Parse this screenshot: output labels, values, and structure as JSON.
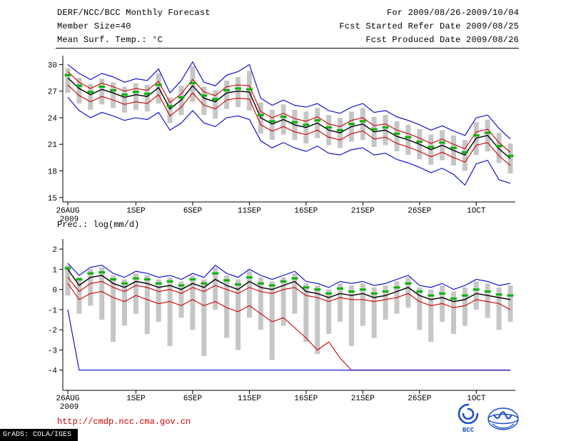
{
  "header": {
    "title": "DERF/NCC/BCC Monthly Forecast",
    "member_size": "Member Size=40",
    "variable_label": "Mean Surf. Temp.: °C",
    "period": "For 2009/08/26-2009/10/04",
    "refer_date": "Fcst Started Refer Date 2009/08/25",
    "produced_date": "Fcst Produced Date 2009/08/26"
  },
  "footer": {
    "url": "http://cmdp.ncc.cma.gov.cn",
    "stamp": "GrADS: COLA/IGES",
    "logos": [
      {
        "name": "bcc-logo",
        "label": "BCC"
      },
      {
        "name": "cma-logo",
        "label": ""
      }
    ]
  },
  "colors": {
    "line_blue": "#0000cc",
    "line_red": "#cc0000",
    "line_black": "#000000",
    "marker_green": "#00b400",
    "bar_gray": "#c6c6c6",
    "url_red": "#cc0000",
    "logo_blue": "#1d50c8"
  },
  "chart_data": [
    {
      "type": "line",
      "title": "Mean Surf. Temp.: °C",
      "n_points": 40,
      "x_tick_labels": [
        "26AUG",
        "1SEP",
        "6SEP",
        "11SEP",
        "16SEP",
        "21SEP",
        "26SEP",
        "1OCT"
      ],
      "x_tick_positions": [
        0,
        6,
        11,
        16,
        21,
        26,
        31,
        36
      ],
      "x_sub_label": "2009",
      "ylim": [
        14.5,
        31
      ],
      "yticks": [
        30,
        27,
        24,
        21,
        18,
        15
      ],
      "series": [
        {
          "name": "ensemble-max",
          "color": "#0000cc",
          "values": [
            30.0,
            29.0,
            28.3,
            29.0,
            28.6,
            28.0,
            28.4,
            28.2,
            29.5,
            26.8,
            28.2,
            30.3,
            28.0,
            27.6,
            28.8,
            29.2,
            30.0,
            26.2,
            25.4,
            26.0,
            25.4,
            25.2,
            25.6,
            24.8,
            24.5,
            25.2,
            25.6,
            24.6,
            24.8,
            24.1,
            23.7,
            23.2,
            22.6,
            23.1,
            22.5,
            22.0,
            24.0,
            24.3,
            22.8,
            21.6
          ]
        },
        {
          "name": "upper-tercile",
          "color": "#cc0000",
          "values": [
            29.2,
            28.0,
            27.3,
            27.9,
            27.5,
            27.0,
            27.3,
            27.1,
            28.1,
            25.7,
            26.7,
            28.3,
            26.9,
            26.5,
            27.5,
            27.7,
            27.6,
            24.7,
            24.0,
            24.5,
            23.9,
            23.6,
            24.1,
            23.3,
            23.0,
            23.7,
            24.0,
            23.1,
            23.3,
            22.6,
            22.2,
            21.7,
            21.1,
            21.6,
            21.0,
            20.5,
            22.4,
            22.7,
            21.2,
            20.1
          ]
        },
        {
          "name": "ensemble-mean",
          "color": "#000000",
          "values": [
            28.5,
            27.3,
            26.6,
            27.2,
            26.8,
            26.3,
            26.6,
            26.4,
            27.4,
            25.0,
            26.0,
            27.6,
            26.2,
            25.8,
            26.8,
            27.0,
            26.9,
            24.0,
            23.3,
            23.8,
            23.2,
            22.9,
            23.4,
            22.6,
            22.3,
            23.0,
            23.3,
            22.4,
            22.6,
            21.9,
            21.5,
            21.0,
            20.4,
            20.9,
            20.3,
            19.8,
            21.7,
            22.0,
            20.5,
            19.4
          ]
        },
        {
          "name": "lower-tercile",
          "color": "#cc0000",
          "values": [
            27.7,
            26.5,
            25.8,
            26.4,
            26.0,
            25.5,
            25.8,
            25.6,
            26.6,
            24.2,
            25.2,
            26.8,
            25.4,
            25.0,
            26.0,
            26.2,
            26.1,
            23.2,
            22.5,
            23.0,
            22.4,
            22.1,
            22.6,
            21.8,
            21.5,
            22.2,
            22.5,
            21.6,
            21.8,
            21.1,
            20.7,
            20.2,
            19.6,
            20.1,
            19.5,
            19.0,
            20.9,
            21.2,
            19.7,
            18.6
          ]
        },
        {
          "name": "ensemble-min",
          "color": "#0000cc",
          "values": [
            26.3,
            24.8,
            24.0,
            24.6,
            24.2,
            23.7,
            24.0,
            23.8,
            24.6,
            22.6,
            23.4,
            24.8,
            23.4,
            23.0,
            24.0,
            24.2,
            23.8,
            21.4,
            20.6,
            21.2,
            20.6,
            20.2,
            20.8,
            20.0,
            19.8,
            20.4,
            20.6,
            19.8,
            20.0,
            19.3,
            18.9,
            18.4,
            17.8,
            18.3,
            17.6,
            16.4,
            18.8,
            19.2,
            17.0,
            16.6
          ]
        }
      ],
      "bars": {
        "name": "member-spread",
        "color": "#c6c6c6",
        "top": [
          29.6,
          28.5,
          27.8,
          28.4,
          28.0,
          27.5,
          27.9,
          27.7,
          29.0,
          26.3,
          27.6,
          29.8,
          27.5,
          27.1,
          28.2,
          28.6,
          29.3,
          25.7,
          24.9,
          25.5,
          24.9,
          24.7,
          25.1,
          24.3,
          24.0,
          24.7,
          25.1,
          24.1,
          24.3,
          23.6,
          23.2,
          22.7,
          22.1,
          22.6,
          22.0,
          21.5,
          23.5,
          23.8,
          22.3,
          21.1
        ],
        "bottom": [
          26.8,
          25.6,
          24.9,
          25.5,
          25.1,
          24.6,
          24.9,
          24.7,
          25.6,
          23.4,
          24.3,
          25.8,
          24.3,
          23.9,
          25.0,
          25.2,
          24.8,
          22.2,
          21.5,
          22.1,
          21.5,
          21.1,
          21.7,
          20.9,
          20.6,
          21.3,
          21.5,
          20.7,
          20.9,
          20.2,
          19.8,
          19.3,
          18.7,
          19.2,
          18.6,
          18.0,
          19.8,
          20.2,
          18.9,
          17.7
        ]
      },
      "markers": {
        "name": "climatology",
        "color": "#00b400",
        "values": [
          28.8,
          27.6,
          26.9,
          27.5,
          27.1,
          26.6,
          26.9,
          26.7,
          27.7,
          25.3,
          26.3,
          27.9,
          26.5,
          26.1,
          27.1,
          27.3,
          27.2,
          24.3,
          23.6,
          24.1,
          23.5,
          23.2,
          23.7,
          22.9,
          22.6,
          23.3,
          23.6,
          22.7,
          22.9,
          22.2,
          21.8,
          21.3,
          20.7,
          21.2,
          20.6,
          20.1,
          22.0,
          22.3,
          20.8,
          19.7
        ]
      }
    },
    {
      "type": "line",
      "title": "Prec.: log(mm/d)",
      "n_points": 40,
      "x_tick_labels": [
        "26AUG",
        "1SEP",
        "6SEP",
        "11SEP",
        "16SEP",
        "21SEP",
        "26SEP",
        "1OCT"
      ],
      "x_tick_positions": [
        0,
        6,
        11,
        16,
        21,
        26,
        31,
        36
      ],
      "x_sub_label": "2009",
      "ylim": [
        -5,
        2.5
      ],
      "yticks": [
        2,
        1,
        0,
        -1,
        -2,
        -3,
        -4
      ],
      "series": [
        {
          "name": "ensemble-max",
          "color": "#0000cc",
          "values": [
            1.3,
            0.7,
            1.1,
            1.2,
            0.8,
            0.6,
            0.9,
            0.8,
            0.6,
            0.7,
            0.5,
            0.8,
            0.6,
            1.2,
            0.8,
            0.6,
            1.0,
            0.7,
            0.5,
            0.7,
            0.9,
            0.4,
            0.3,
            0.1,
            0.4,
            0.3,
            0.4,
            0.2,
            0.3,
            0.5,
            0.7,
            0.2,
            0.1,
            0.3,
            0.0,
            0.2,
            0.5,
            0.4,
            0.2,
            0.3
          ]
        },
        {
          "name": "upper-tercile",
          "color": "#cc0000",
          "values": [
            0.6,
            -0.1,
            0.3,
            0.4,
            0.1,
            -0.1,
            0.2,
            0.1,
            -0.1,
            0.0,
            -0.2,
            0.1,
            -0.1,
            0.2,
            0.0,
            -0.2,
            0.1,
            -0.1,
            -0.2,
            0.0,
            0.1,
            -0.3,
            -0.4,
            -0.6,
            -0.4,
            -0.5,
            -0.5,
            -0.6,
            -0.5,
            -0.4,
            -0.2,
            -0.6,
            -0.8,
            -0.7,
            -0.9,
            -0.8,
            -0.5,
            -0.6,
            -0.7,
            -1.0
          ]
        },
        {
          "name": "ensemble-mean",
          "color": "#000000",
          "values": [
            1.0,
            0.2,
            0.6,
            0.7,
            0.3,
            0.1,
            0.4,
            0.3,
            0.1,
            0.2,
            0.0,
            0.3,
            0.1,
            0.5,
            0.2,
            0.0,
            0.4,
            0.1,
            0.0,
            0.2,
            0.4,
            -0.1,
            -0.2,
            -0.4,
            -0.2,
            -0.3,
            -0.2,
            -0.4,
            -0.3,
            -0.1,
            0.1,
            -0.3,
            -0.5,
            -0.4,
            -0.6,
            -0.5,
            -0.2,
            -0.3,
            -0.4,
            -0.5
          ]
        },
        {
          "name": "lower-tercile",
          "color": "#cc0000",
          "values": [
            0.3,
            -0.5,
            -0.2,
            -0.1,
            -0.4,
            -0.6,
            -0.3,
            -0.5,
            -0.7,
            -0.6,
            -0.8,
            -0.5,
            -0.8,
            -0.6,
            -0.9,
            -1.1,
            -0.8,
            -1.2,
            -1.6,
            -1.4,
            -1.9,
            -2.4,
            -3.0,
            -2.6,
            -3.4,
            -4.0,
            -4.0,
            -4.0,
            -4.0,
            -4.0,
            -4.0,
            -4.0,
            -4.0,
            -4.0,
            -4.0,
            -4.0,
            -4.0,
            -4.0,
            -4.0,
            -4.0
          ]
        },
        {
          "name": "ensemble-min",
          "color": "#0000cc",
          "values": [
            -1.0,
            -4.0,
            -4.0,
            -4.0,
            -4.0,
            -4.0,
            -4.0,
            -4.0,
            -4.0,
            -4.0,
            -4.0,
            -4.0,
            -4.0,
            -4.0,
            -4.0,
            -4.0,
            -4.0,
            -4.0,
            -4.0,
            -4.0,
            -4.0,
            -4.0,
            -4.0,
            -4.0,
            -4.0,
            -4.0,
            -4.0,
            -4.0,
            -4.0,
            -4.0,
            -4.0,
            -4.0,
            -4.0,
            -4.0,
            -4.0,
            -4.0,
            -4.0,
            -4.0,
            -4.0,
            -4.0
          ]
        }
      ],
      "bars": {
        "name": "member-spread",
        "color": "#c6c6c6",
        "top": [
          1.2,
          0.6,
          1.0,
          1.1,
          0.7,
          0.5,
          0.8,
          0.7,
          0.5,
          0.6,
          0.4,
          0.7,
          0.5,
          1.1,
          0.7,
          0.5,
          0.9,
          0.6,
          0.4,
          0.6,
          0.8,
          0.3,
          0.2,
          0.0,
          0.3,
          0.2,
          0.3,
          0.1,
          0.2,
          0.4,
          0.6,
          0.1,
          0.0,
          0.2,
          -0.1,
          0.1,
          0.4,
          0.3,
          0.1,
          0.2
        ],
        "bottom": [
          -0.3,
          -1.2,
          -0.8,
          -1.5,
          -2.6,
          -1.8,
          -1.2,
          -2.2,
          -1.6,
          -2.8,
          -1.4,
          -2.0,
          -3.3,
          -1.0,
          -2.4,
          -3.0,
          -1.4,
          -2.0,
          -3.5,
          -1.8,
          -1.2,
          -2.6,
          -3.2,
          -2.2,
          -1.6,
          -2.8,
          -1.8,
          -2.4,
          -1.5,
          -1.2,
          -0.9,
          -2.0,
          -2.6,
          -1.6,
          -2.2,
          -1.8,
          -1.0,
          -1.4,
          -2.0,
          -1.6
        ]
      },
      "markers": {
        "name": "climatology",
        "color": "#00b400",
        "values": [
          1.05,
          0.5,
          0.8,
          0.85,
          0.5,
          0.3,
          0.55,
          0.5,
          0.3,
          0.4,
          0.2,
          0.5,
          0.3,
          0.8,
          0.45,
          0.25,
          0.6,
          0.3,
          0.2,
          0.4,
          0.55,
          0.1,
          0.0,
          -0.2,
          0.05,
          -0.1,
          0.0,
          -0.2,
          -0.1,
          0.1,
          0.3,
          -0.1,
          -0.3,
          -0.2,
          -0.45,
          -0.3,
          0.0,
          -0.1,
          -0.25,
          -0.3
        ]
      }
    }
  ]
}
